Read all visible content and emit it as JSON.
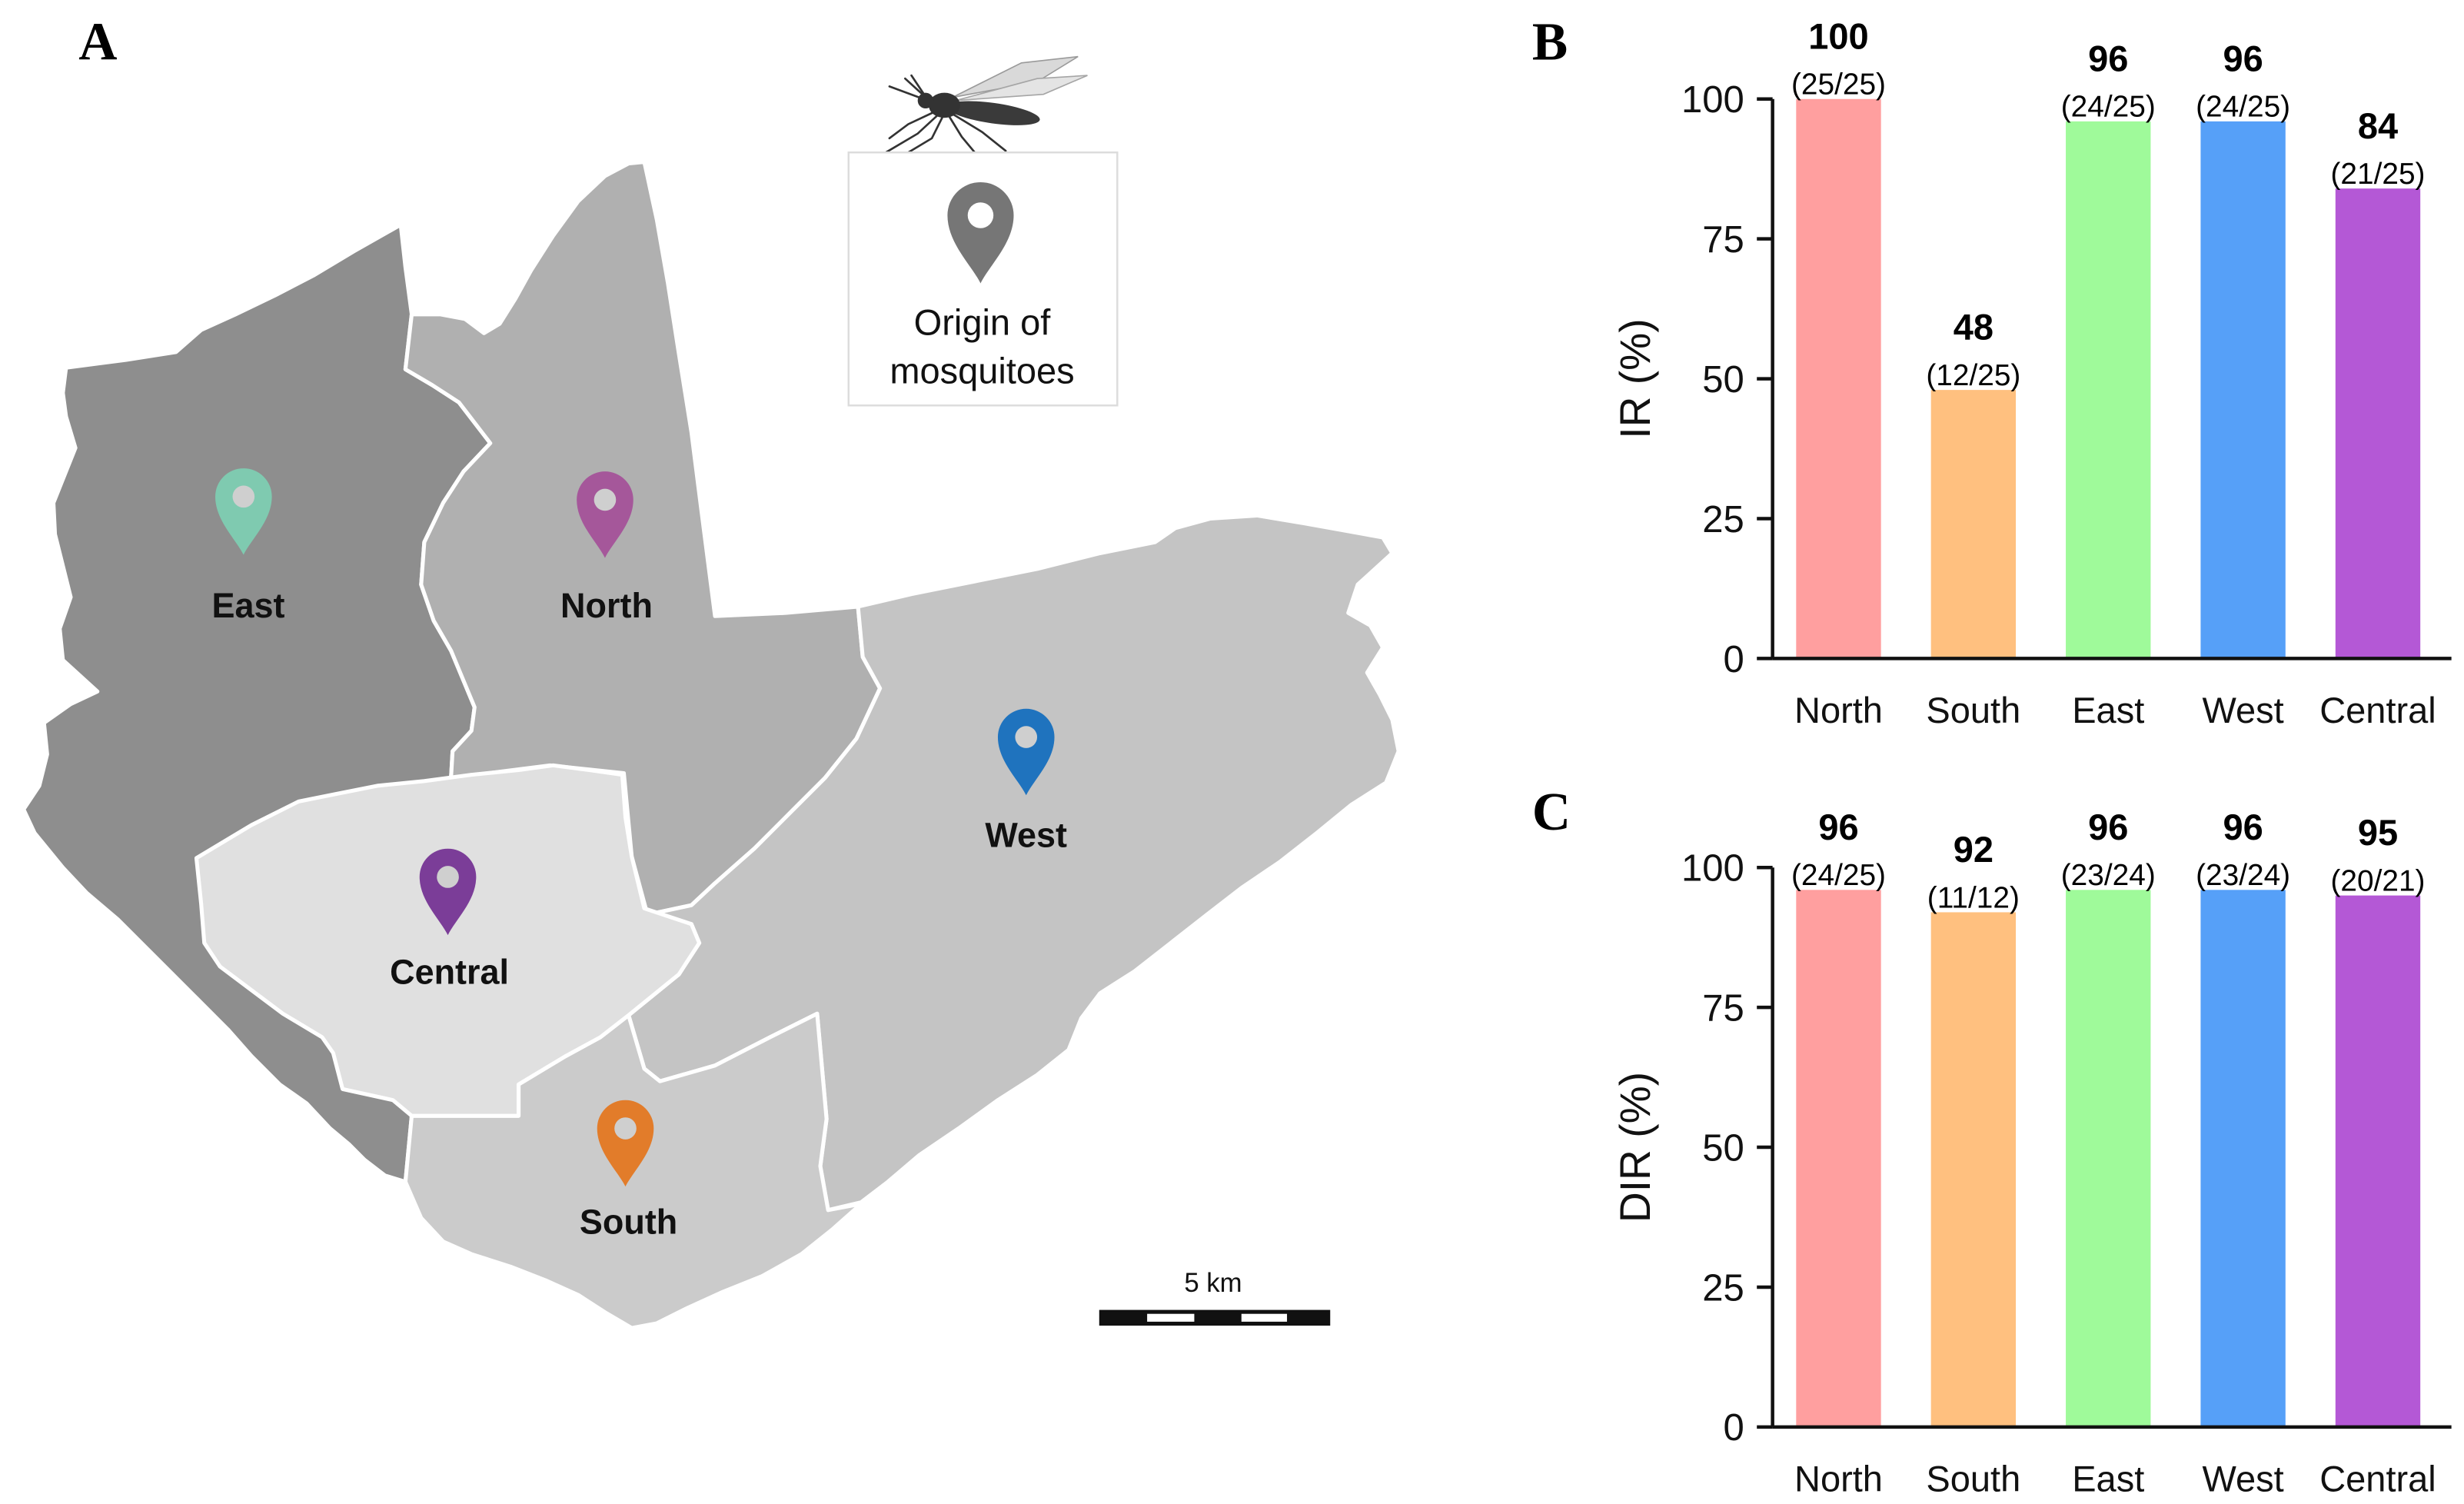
{
  "map": {
    "panel_label": "A",
    "labels": {
      "east": "East",
      "north": "North",
      "west": "West",
      "central": "Central",
      "south": "South"
    },
    "legend": {
      "line1": "Origin of",
      "line2": "mosquitoes"
    },
    "scale_bar_label": "5 km",
    "region_colors": {
      "east": "#8e8e8e",
      "north": "#b0b0b0",
      "west": "#c4c4c4",
      "south": "#cbcbcb",
      "central": "#e0e0e0"
    },
    "pin_colors": {
      "east": "#7fcab0",
      "north": "#a5579a",
      "west": "#1f73be",
      "central": "#7b3d98",
      "south": "#e27c2a",
      "legend": "#767676"
    }
  },
  "chart_data": [
    {
      "panel_label": "B",
      "type": "bar",
      "title": "",
      "categories": [
        "North",
        "South",
        "East",
        "West",
        "Central"
      ],
      "values": [
        100,
        48,
        96,
        96,
        84
      ],
      "counts": [
        "(25/25)",
        "(12/25)",
        "(24/25)",
        "(24/25)",
        "(21/25)"
      ],
      "xlabel": "",
      "ylabel": "IR (%)",
      "ylim": [
        0,
        100
      ],
      "yticks": [
        0,
        25,
        50,
        75,
        100
      ],
      "grid": false,
      "colors": [
        "#ff9f9f",
        "#ffc07f",
        "#9ffa9a",
        "#56a0f8",
        "#b458d6"
      ]
    },
    {
      "panel_label": "C",
      "type": "bar",
      "title": "",
      "categories": [
        "North",
        "South",
        "East",
        "West",
        "Central"
      ],
      "values": [
        96,
        92,
        96,
        96,
        95
      ],
      "counts": [
        "(24/25)",
        "(11/12)",
        "(23/24)",
        "(23/24)",
        "(20/21)"
      ],
      "xlabel": "",
      "ylabel": "DIR (%)",
      "ylim": [
        0,
        100
      ],
      "yticks": [
        0,
        25,
        50,
        75,
        100
      ],
      "grid": false,
      "colors": [
        "#ff9f9f",
        "#ffc07f",
        "#9ffa9a",
        "#56a0f8",
        "#b458d6"
      ]
    }
  ]
}
